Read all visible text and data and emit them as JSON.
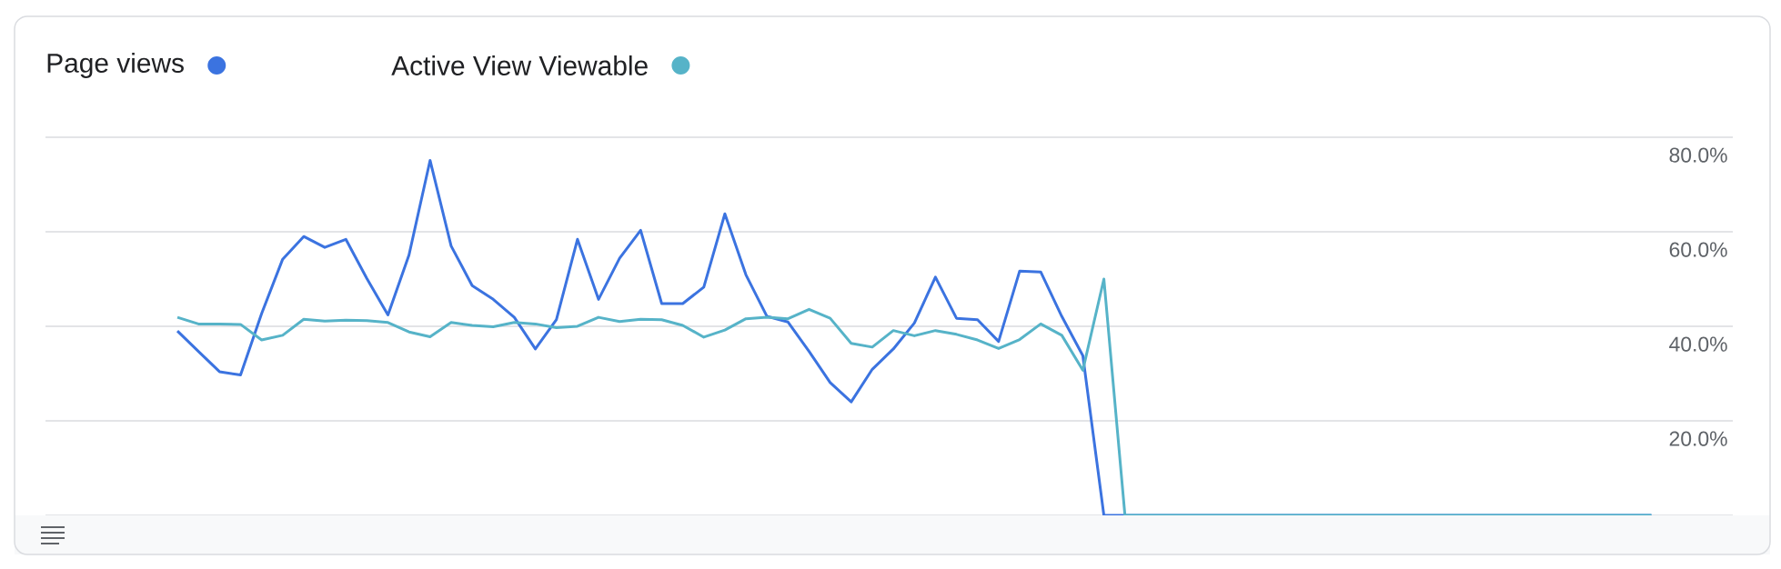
{
  "chart_data": {
    "type": "line",
    "categories": [
      null,
      null,
      null,
      null,
      null,
      null,
      null,
      null,
      null,
      null,
      null,
      null,
      null,
      null,
      null,
      null,
      null,
      null,
      null,
      null,
      null,
      null,
      null,
      null,
      null,
      null,
      null,
      null,
      null,
      null,
      null,
      null,
      null,
      null,
      null,
      null,
      null,
      null,
      null,
      null,
      null,
      null,
      null,
      null,
      null,
      null,
      null,
      null,
      null,
      null,
      null,
      null,
      null,
      null,
      null,
      null,
      null,
      null,
      null,
      null,
      null,
      null,
      null,
      null,
      null,
      null,
      null,
      null,
      null,
      null,
      null
    ],
    "series": [
      {
        "name": "Page views",
        "color": "#3b73e0",
        "values": [
          39.0,
          34.7,
          30.4,
          29.7,
          42.7,
          54.2,
          59.0,
          56.7,
          58.4,
          50.1,
          42.4,
          55.1,
          75.1,
          57.0,
          48.6,
          45.7,
          41.9,
          35.2,
          41.4,
          58.4,
          45.7,
          54.4,
          60.3,
          44.8,
          44.8,
          48.3,
          63.8,
          50.9,
          42.1,
          40.9,
          34.7,
          28.1,
          24.0,
          30.9,
          35.2,
          40.7,
          50.4,
          41.7,
          41.4,
          36.8,
          51.7,
          51.5,
          42.1,
          33.8,
          0,
          0,
          0,
          0,
          0,
          0,
          0,
          0,
          0,
          0,
          0,
          0,
          0,
          0,
          0,
          0,
          0,
          0,
          0,
          0,
          0,
          0,
          0,
          0,
          0,
          0,
          0
        ]
      },
      {
        "name": "Active View Viewable",
        "color": "#56b3c8",
        "values": [
          41.9,
          40.5,
          40.5,
          40.4,
          37.1,
          38.1,
          41.5,
          41.1,
          41.3,
          41.2,
          40.8,
          38.8,
          37.8,
          40.8,
          40.2,
          39.9,
          40.8,
          40.5,
          39.7,
          40.0,
          41.9,
          41.0,
          41.5,
          41.4,
          40.2,
          37.7,
          39.2,
          41.6,
          41.9,
          41.6,
          43.6,
          41.7,
          36.4,
          35.6,
          39.1,
          38.0,
          39.1,
          38.3,
          37.1,
          35.3,
          37.2,
          40.5,
          38.1,
          30.7,
          50.0,
          0,
          0,
          0,
          0,
          0,
          0,
          0,
          0,
          0,
          0,
          0,
          0,
          0,
          0,
          0,
          0,
          0,
          0,
          0,
          0,
          0,
          0,
          0,
          0,
          0,
          0
        ]
      }
    ],
    "ylim": [
      0,
      80
    ],
    "yticks": [
      {
        "value": 0,
        "label": null
      },
      {
        "value": 20,
        "label": "20.0%"
      },
      {
        "value": 40,
        "label": "40.0%"
      },
      {
        "value": 60,
        "label": "60.0%"
      },
      {
        "value": 80,
        "label": "80.0%"
      }
    ],
    "grid": "y",
    "legend": "top left",
    "tick_labels": "y"
  }
}
